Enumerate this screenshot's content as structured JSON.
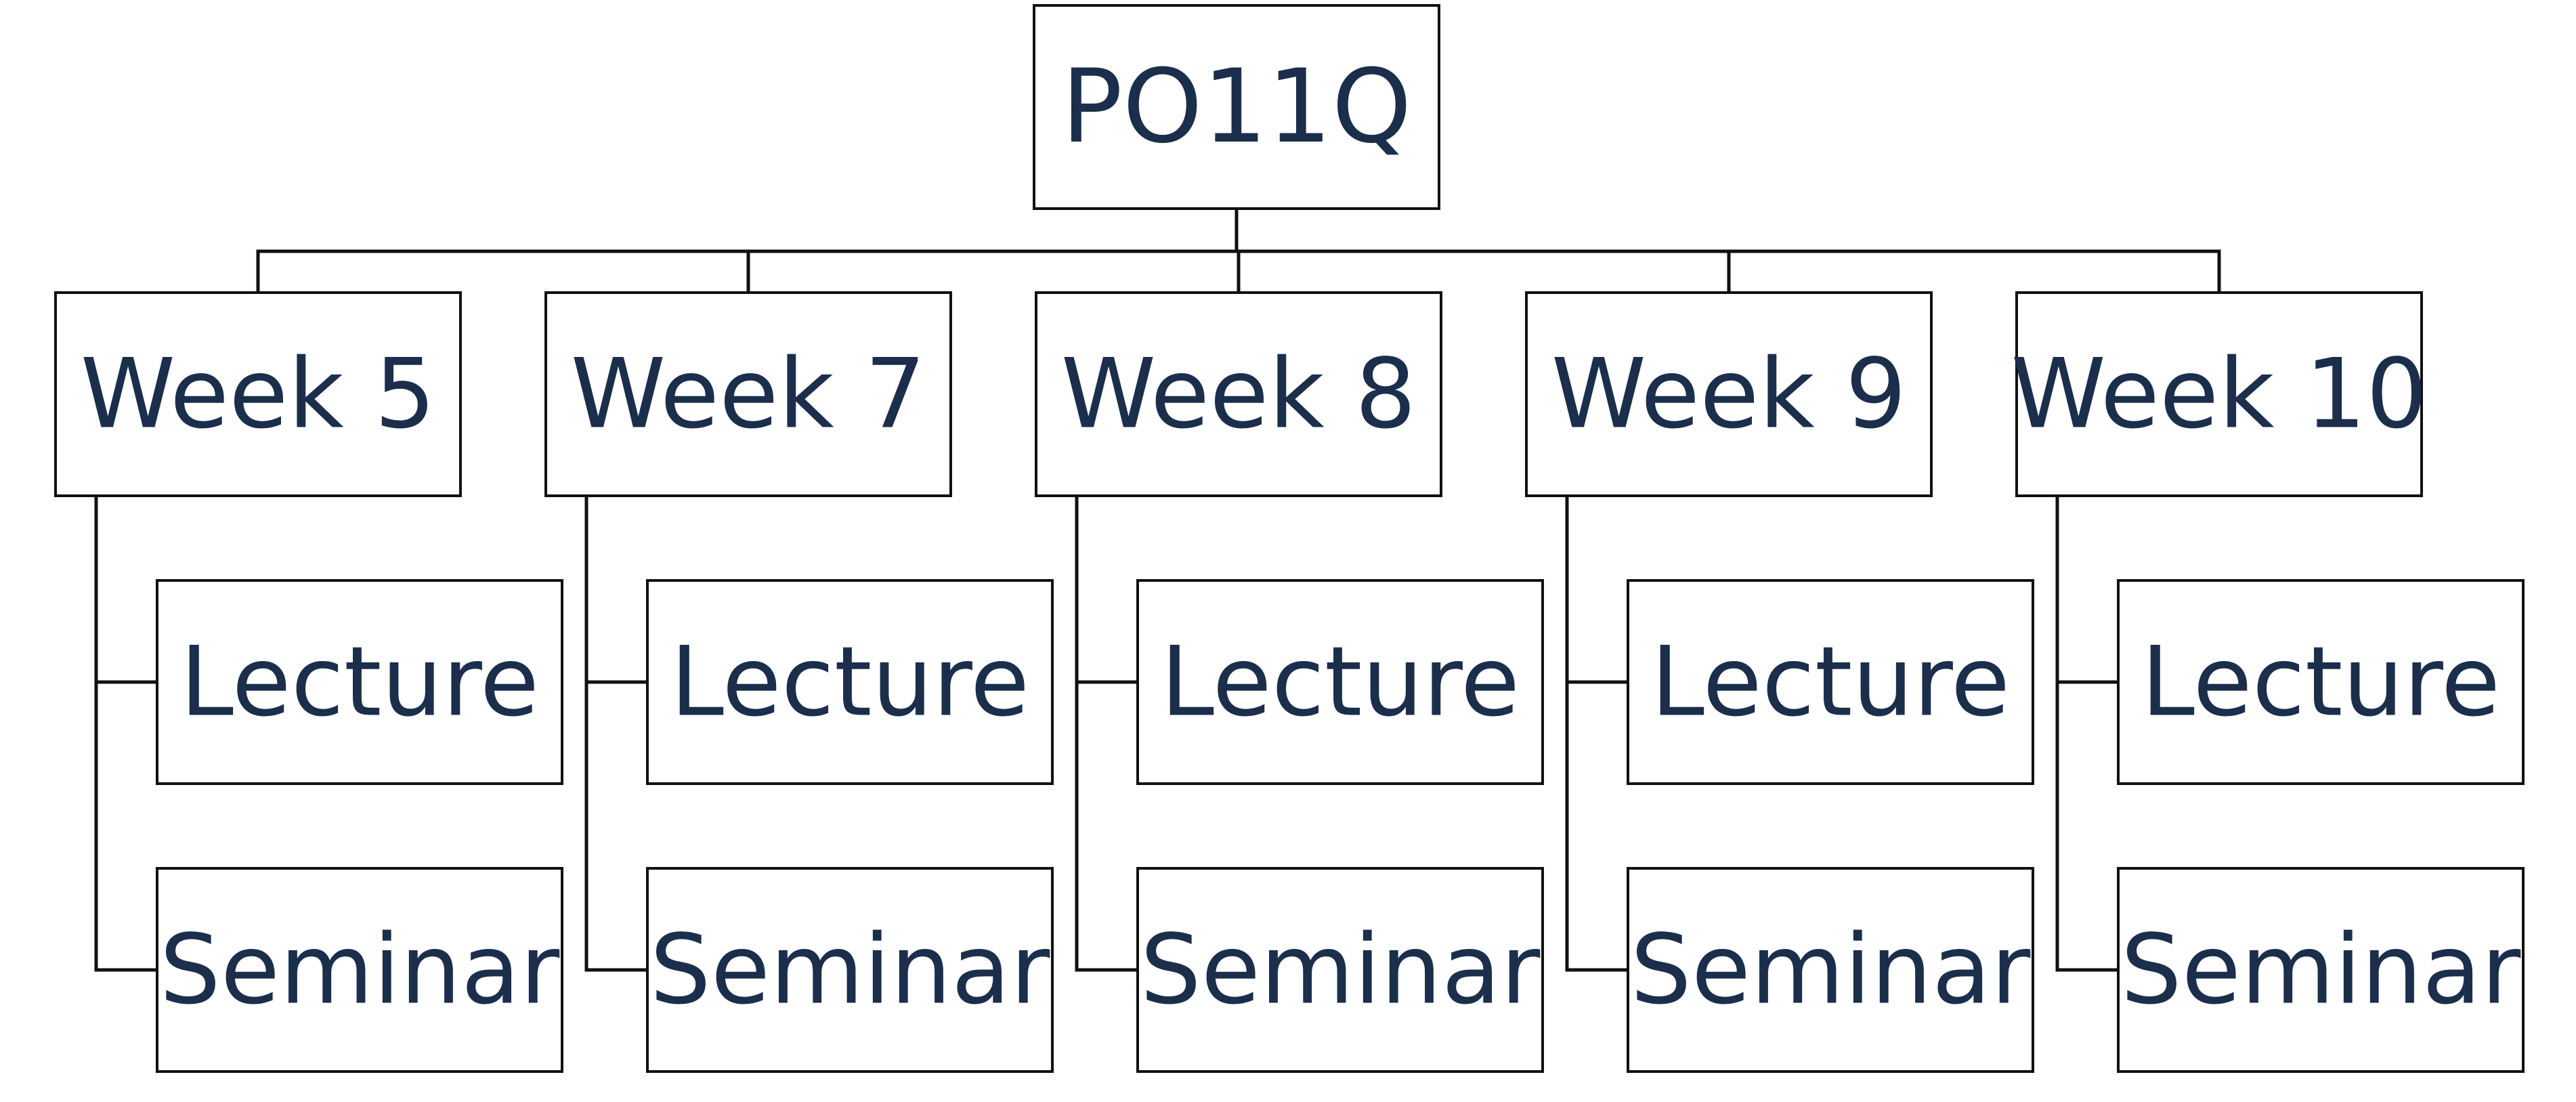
{
  "colors": {
    "text": "#1b2e4b",
    "stroke": "#111111",
    "background": "#ffffff"
  },
  "root": {
    "label": "PO11Q"
  },
  "weeks": [
    {
      "label": "Week 5",
      "children": [
        "Lecture",
        "Seminar"
      ]
    },
    {
      "label": "Week 7",
      "children": [
        "Lecture",
        "Seminar"
      ]
    },
    {
      "label": "Week 8",
      "children": [
        "Lecture",
        "Seminar"
      ]
    },
    {
      "label": "Week 9",
      "children": [
        "Lecture",
        "Seminar"
      ]
    },
    {
      "label": "Week 10",
      "children": [
        "Lecture",
        "Seminar"
      ]
    }
  ]
}
